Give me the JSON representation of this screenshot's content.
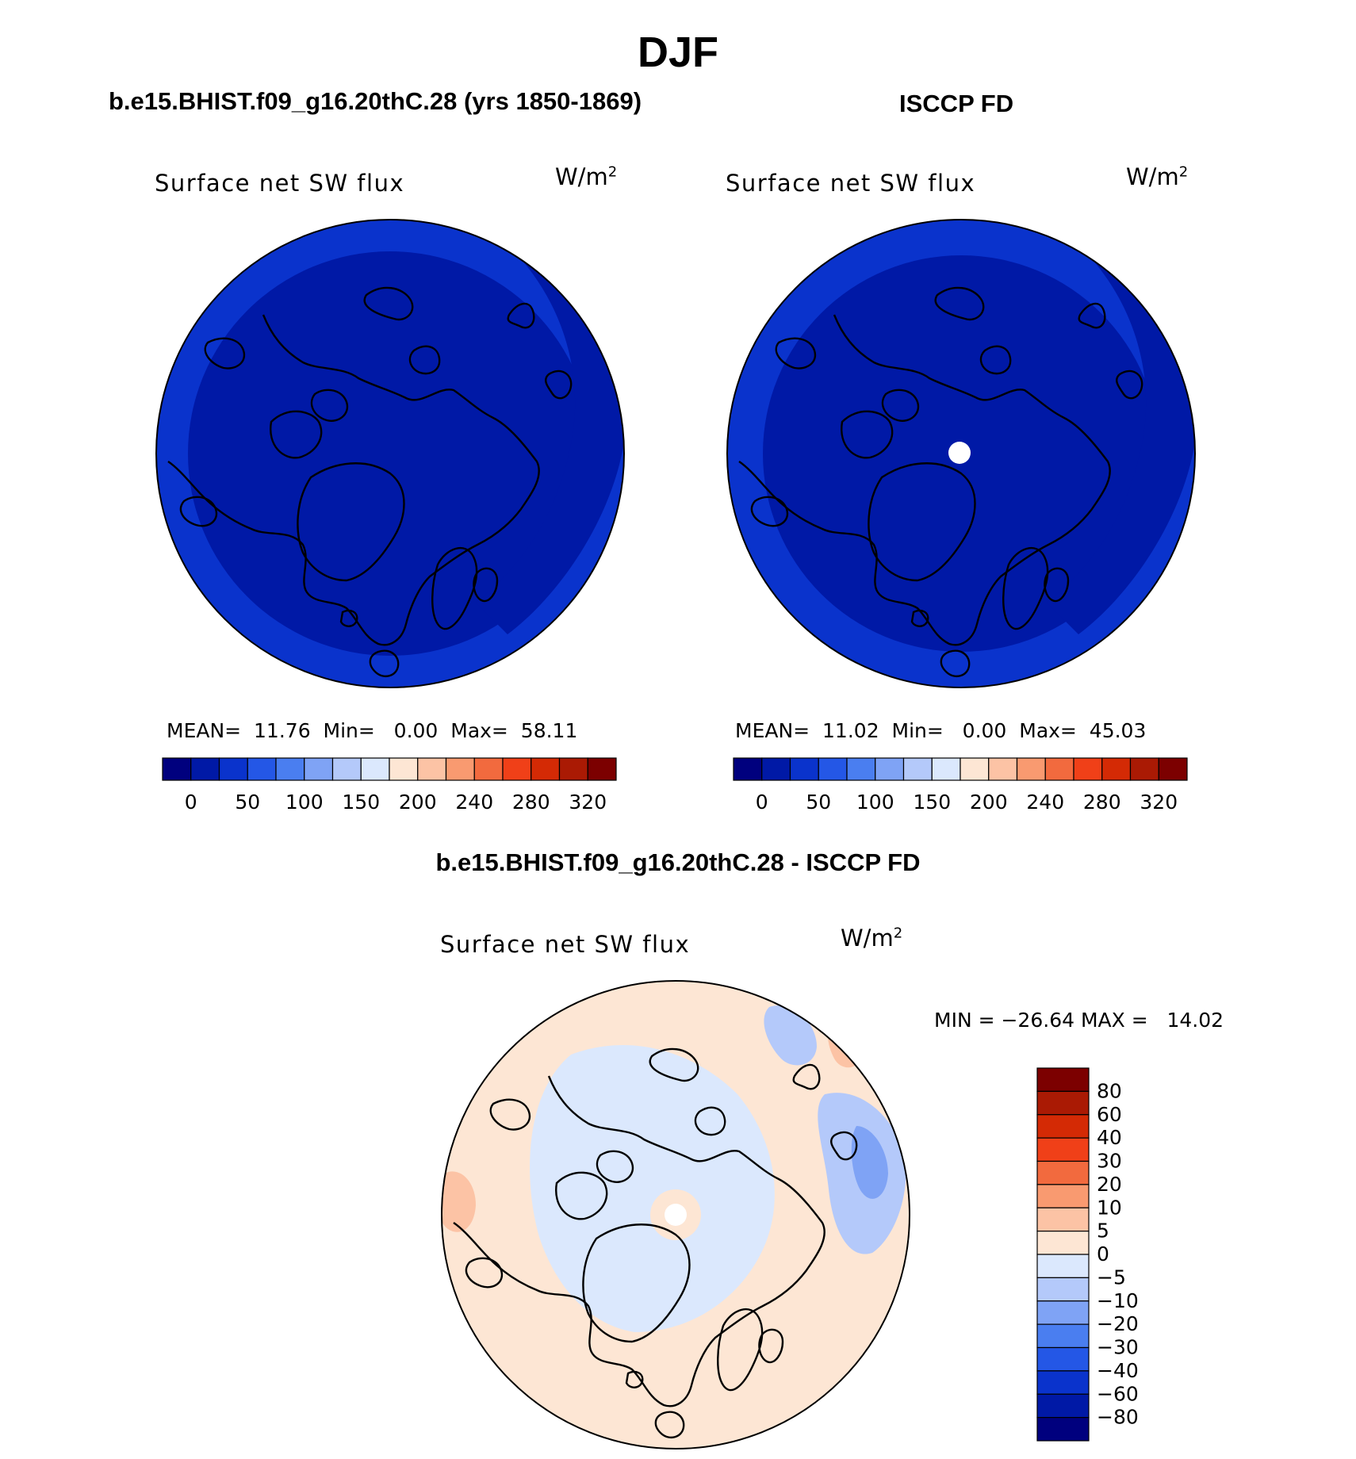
{
  "figure_title": "DJF",
  "panels": [
    {
      "heading": "b.e15.BHIST.f09_g16.20thC.28 (yrs 1850-1869)",
      "label": "Surface net SW flux",
      "units_base": "W/m",
      "units_exp": "2",
      "stats": {
        "mean_label": "MEAN=",
        "mean": "11.76",
        "min_label": "Min=",
        "min": "0.00",
        "max_label": "Max=",
        "max": "58.11"
      }
    },
    {
      "heading": "ISCCP FD",
      "label": "Surface net SW flux",
      "units_base": "W/m",
      "units_exp": "2",
      "stats": {
        "mean_label": "MEAN=",
        "mean": "11.02",
        "min_label": "Min=",
        "min": "0.00",
        "max_label": "Max=",
        "max": "45.03"
      }
    },
    {
      "heading": "b.e15.BHIST.f09_g16.20thC.28 - ISCCP FD",
      "label": "Surface net SW flux",
      "units_base": "W/m",
      "units_exp": "2",
      "minmax_text": "MIN = −26.64 MAX =   14.02"
    }
  ],
  "chart_data": [
    {
      "type": "heatmap",
      "projection": "north polar stereographic",
      "title": "b.e15.BHIST.f09_g16.20thC.28 (yrs 1850-1869)",
      "variable": "Surface net SW flux",
      "units": "W/m2",
      "mean": 11.76,
      "min": 0.0,
      "max": 58.11,
      "colorbar_orientation": "horizontal",
      "colorbar_tick_labels": [
        "0",
        "50",
        "100",
        "150",
        "200",
        "240",
        "280",
        "320"
      ],
      "colorbar_colors": [
        "#00007e",
        "#0019a6",
        "#0a33cc",
        "#2457e6",
        "#4a7ef0",
        "#7fa3f5",
        "#b4c9fa",
        "#dbe8fd",
        "#fde6d4",
        "#fcc3a5",
        "#f99a70",
        "#f26a3e",
        "#f04018",
        "#d42a05",
        "#aa1a04",
        "#7c0000"
      ]
    },
    {
      "type": "heatmap",
      "projection": "north polar stereographic",
      "title": "ISCCP FD",
      "variable": "Surface net SW flux",
      "units": "W/m2",
      "mean": 11.02,
      "min": 0.0,
      "max": 45.03,
      "colorbar_orientation": "horizontal",
      "colorbar_tick_labels": [
        "0",
        "50",
        "100",
        "150",
        "200",
        "240",
        "280",
        "320"
      ],
      "colorbar_colors": [
        "#00007e",
        "#0019a6",
        "#0a33cc",
        "#2457e6",
        "#4a7ef0",
        "#7fa3f5",
        "#b4c9fa",
        "#dbe8fd",
        "#fde6d4",
        "#fcc3a5",
        "#f99a70",
        "#f26a3e",
        "#f04018",
        "#d42a05",
        "#aa1a04",
        "#7c0000"
      ]
    },
    {
      "type": "heatmap",
      "projection": "north polar stereographic",
      "title": "b.e15.BHIST.f09_g16.20thC.28 - ISCCP FD",
      "variable": "Surface net SW flux",
      "units": "W/m2",
      "min": -26.64,
      "max": 14.02,
      "colorbar_orientation": "vertical",
      "colorbar_tick_labels": [
        "80",
        "60",
        "40",
        "30",
        "20",
        "10",
        "5",
        "0",
        "−5",
        "−10",
        "−20",
        "−30",
        "−40",
        "−60",
        "−80"
      ],
      "colorbar_colors": [
        "#7c0000",
        "#aa1a04",
        "#d42a05",
        "#f04018",
        "#f26a3e",
        "#f99a70",
        "#fcc3a5",
        "#fde6d4",
        "#dbe8fd",
        "#b4c9fa",
        "#7fa3f5",
        "#4a7ef0",
        "#2457e6",
        "#0a33cc",
        "#0019a6",
        "#00007e"
      ]
    }
  ]
}
